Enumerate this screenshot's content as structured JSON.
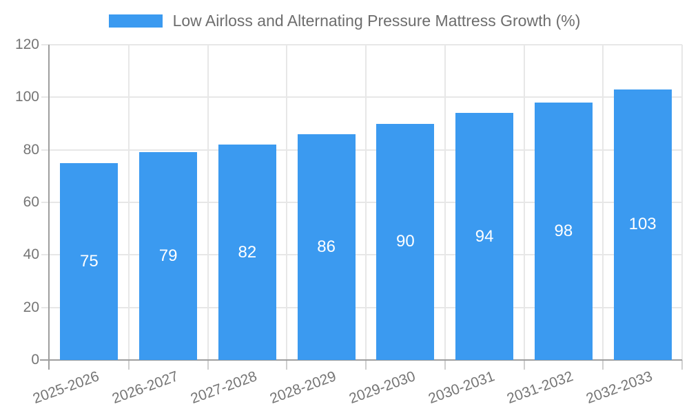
{
  "legend": {
    "label": "Low Airloss and Alternating Pressure Mattress Growth (%)"
  },
  "chart_data": {
    "type": "bar",
    "title": "Low Airloss and Alternating Pressure Mattress Growth (%)",
    "categories": [
      "2025-2026",
      "2026-2027",
      "2027-2028",
      "2028-2029",
      "2029-2030",
      "2030-2031",
      "2031-2032",
      "2032-2033"
    ],
    "values": [
      75,
      79,
      82,
      86,
      90,
      94,
      98,
      103
    ],
    "xlabel": "",
    "ylabel": "",
    "ylim": [
      0,
      120
    ],
    "ytick_step": 20,
    "yticks": [
      0,
      20,
      40,
      60,
      80,
      100,
      120
    ],
    "grid": true,
    "legend_position": "top-center",
    "bar_color": "#3B9AF0",
    "value_label_color": "#FFFFFF",
    "value_label_position": "inside-center",
    "x_tick_rotation_deg": -20,
    "axis_color": "#9e9e9e",
    "gridline_color": "#e7e7e7",
    "tick_label_color": "#757575"
  }
}
